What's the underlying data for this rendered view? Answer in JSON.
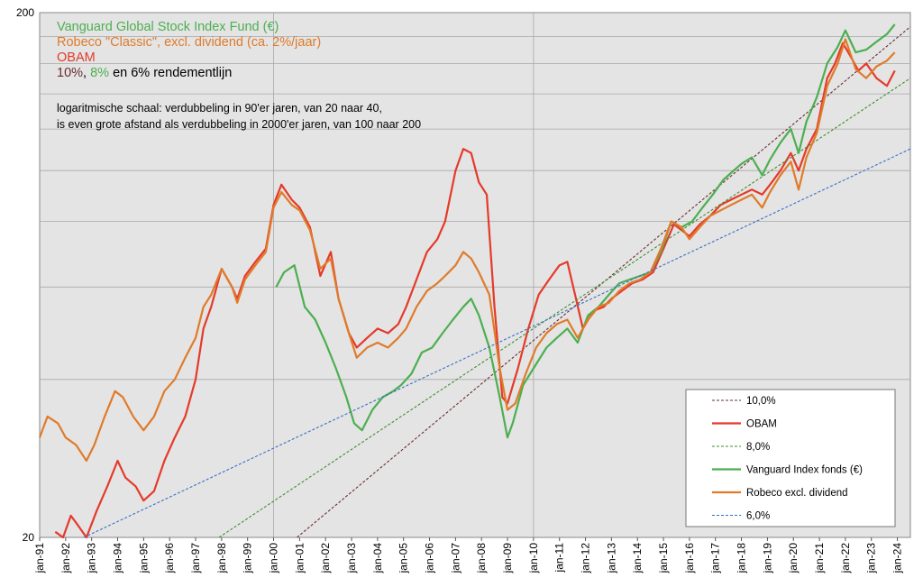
{
  "chart_data": {
    "type": "line",
    "yscale": "log",
    "ylim": [
      20,
      200
    ],
    "yticks": [
      "200",
      "20"
    ],
    "xlim": [
      1991.0,
      2024.5
    ],
    "xticks": [
      "jan-91",
      "jan-92",
      "jan-93",
      "jan-94",
      "jan-95",
      "jan-96",
      "jan-97",
      "jan-98",
      "jan-99",
      "jan-00",
      "jan-01",
      "jan-02",
      "jan-03",
      "jan-04",
      "jan-05",
      "jan-06",
      "jan-07",
      "jan-08",
      "jan-09",
      "jan-10",
      "jan-11",
      "jan-12",
      "jan-13",
      "jan-14",
      "jan-15",
      "jan-16",
      "jan-17",
      "jan-18",
      "jan-19",
      "jan-20",
      "jan-21",
      "jan-22",
      "jan-23",
      "jan-24"
    ],
    "grid": true,
    "title_lines": [
      {
        "text": "Vanguard Global Stock Index Fund (€)",
        "color": "#4caf50"
      },
      {
        "text": "Robeco \"Classic\", excl. dividend (ca. 2%/jaar)",
        "color": "#e07b2a"
      },
      {
        "text": "OBAM",
        "color": "#e53a2a"
      }
    ],
    "rendement_line": [
      {
        "text": "10%",
        "color": "#6b2d2d"
      },
      {
        "text": ", ",
        "color": "#000000"
      },
      {
        "text": "8%",
        "color": "#4caf50"
      },
      {
        "text": " en 6% rendementlijn",
        "color": "#000000"
      }
    ],
    "note": [
      "logaritmische schaal: verdubbeling in 90'er jaren, van 20 naar 40,",
      "is even grote afstand als verdubbeling in 2000'er jaren, van 100 naar 200"
    ],
    "legend_position": "bottom-right",
    "series": [
      {
        "name": "10,0%",
        "color": "#6b2d2d",
        "dashed": true,
        "points": [
          [
            2000.9,
            20
          ],
          [
            2024.5,
            188
          ]
        ]
      },
      {
        "name": "OBAM",
        "color": "#e53a2a",
        "dashed": false,
        "points": [
          [
            1991.6,
            20.5
          ],
          [
            1991.9,
            20
          ],
          [
            1992.2,
            22
          ],
          [
            1992.5,
            21
          ],
          [
            1992.8,
            20
          ],
          [
            1993.2,
            22.5
          ],
          [
            1993.6,
            25
          ],
          [
            1994.0,
            28
          ],
          [
            1994.3,
            26
          ],
          [
            1994.7,
            25
          ],
          [
            1995.0,
            23.5
          ],
          [
            1995.4,
            24.5
          ],
          [
            1995.8,
            28
          ],
          [
            1996.2,
            31
          ],
          [
            1996.6,
            34
          ],
          [
            1997.0,
            40
          ],
          [
            1997.3,
            50
          ],
          [
            1997.6,
            55
          ],
          [
            1998.0,
            65
          ],
          [
            1998.4,
            60
          ],
          [
            1998.6,
            57
          ],
          [
            1998.9,
            63
          ],
          [
            1999.3,
            67
          ],
          [
            1999.7,
            71
          ],
          [
            2000.0,
            86
          ],
          [
            2000.3,
            94
          ],
          [
            2000.7,
            88
          ],
          [
            2001.0,
            85
          ],
          [
            2001.4,
            78
          ],
          [
            2001.8,
            63
          ],
          [
            2002.2,
            70
          ],
          [
            2002.5,
            57
          ],
          [
            2002.9,
            49
          ],
          [
            2003.2,
            46
          ],
          [
            2003.6,
            48
          ],
          [
            2004.0,
            50
          ],
          [
            2004.4,
            49
          ],
          [
            2004.8,
            51
          ],
          [
            2005.1,
            55
          ],
          [
            2005.5,
            62
          ],
          [
            2005.9,
            70
          ],
          [
            2006.3,
            74
          ],
          [
            2006.6,
            80
          ],
          [
            2007.0,
            100
          ],
          [
            2007.3,
            110
          ],
          [
            2007.6,
            108
          ],
          [
            2007.9,
            95
          ],
          [
            2008.2,
            90
          ],
          [
            2008.5,
            55
          ],
          [
            2008.8,
            37
          ],
          [
            2009.0,
            36
          ],
          [
            2009.4,
            42
          ],
          [
            2009.8,
            50
          ],
          [
            2010.2,
            58
          ],
          [
            2010.6,
            62
          ],
          [
            2011.0,
            66
          ],
          [
            2011.3,
            67
          ],
          [
            2011.6,
            58
          ],
          [
            2011.9,
            50
          ],
          [
            2012.3,
            54
          ],
          [
            2012.7,
            55
          ],
          [
            2013.0,
            57
          ],
          [
            2013.4,
            59
          ],
          [
            2013.8,
            61
          ],
          [
            2014.2,
            62
          ],
          [
            2014.6,
            64
          ],
          [
            2015.0,
            71
          ],
          [
            2015.4,
            79
          ],
          [
            2015.7,
            77
          ],
          [
            2016.0,
            75
          ],
          [
            2016.4,
            79
          ],
          [
            2016.8,
            82
          ],
          [
            2017.2,
            86
          ],
          [
            2017.6,
            88
          ],
          [
            2018.0,
            90
          ],
          [
            2018.4,
            92
          ],
          [
            2018.8,
            90
          ],
          [
            2019.1,
            94
          ],
          [
            2019.5,
            100
          ],
          [
            2019.9,
            108
          ],
          [
            2020.2,
            100
          ],
          [
            2020.5,
            110
          ],
          [
            2020.9,
            120
          ],
          [
            2021.3,
            150
          ],
          [
            2021.6,
            160
          ],
          [
            2021.9,
            175
          ],
          [
            2022.2,
            165
          ],
          [
            2022.5,
            155
          ],
          [
            2022.8,
            160
          ],
          [
            2023.2,
            150
          ],
          [
            2023.6,
            145
          ],
          [
            2023.9,
            155
          ]
        ]
      },
      {
        "name": "8,0%",
        "color": "#3f8f2a",
        "dashed": true,
        "points": [
          [
            1997.9,
            20
          ],
          [
            2024.5,
            150
          ]
        ]
      },
      {
        "name": "Vanguard Index fonds (€)",
        "color": "#4caf50",
        "dashed": false,
        "points": [
          [
            2000.1,
            60
          ],
          [
            2000.4,
            64
          ],
          [
            2000.8,
            66
          ],
          [
            2001.2,
            55
          ],
          [
            2001.6,
            52
          ],
          [
            2002.0,
            47
          ],
          [
            2002.4,
            42
          ],
          [
            2002.8,
            37
          ],
          [
            2003.1,
            33
          ],
          [
            2003.4,
            32
          ],
          [
            2003.8,
            35
          ],
          [
            2004.2,
            37
          ],
          [
            2004.6,
            38
          ],
          [
            2004.9,
            39
          ],
          [
            2005.3,
            41
          ],
          [
            2005.7,
            45
          ],
          [
            2006.1,
            46
          ],
          [
            2006.5,
            49
          ],
          [
            2006.9,
            52
          ],
          [
            2007.3,
            55
          ],
          [
            2007.6,
            57
          ],
          [
            2007.9,
            53
          ],
          [
            2008.3,
            46
          ],
          [
            2008.7,
            37
          ],
          [
            2009.0,
            31
          ],
          [
            2009.2,
            33
          ],
          [
            2009.6,
            39
          ],
          [
            2010.0,
            42
          ],
          [
            2010.5,
            46
          ],
          [
            2010.9,
            48
          ],
          [
            2011.3,
            50
          ],
          [
            2011.7,
            47
          ],
          [
            2012.1,
            53
          ],
          [
            2012.5,
            55
          ],
          [
            2012.9,
            58
          ],
          [
            2013.3,
            61
          ],
          [
            2013.7,
            62
          ],
          [
            2014.1,
            63
          ],
          [
            2014.5,
            64
          ],
          [
            2014.9,
            70
          ],
          [
            2015.3,
            80
          ],
          [
            2015.7,
            78
          ],
          [
            2016.1,
            80
          ],
          [
            2016.5,
            85
          ],
          [
            2016.9,
            90
          ],
          [
            2017.3,
            96
          ],
          [
            2017.7,
            100
          ],
          [
            2018.0,
            103
          ],
          [
            2018.4,
            106
          ],
          [
            2018.8,
            98
          ],
          [
            2019.1,
            105
          ],
          [
            2019.5,
            113
          ],
          [
            2019.9,
            120
          ],
          [
            2020.2,
            108
          ],
          [
            2020.5,
            124
          ],
          [
            2020.9,
            138
          ],
          [
            2021.3,
            160
          ],
          [
            2021.7,
            172
          ],
          [
            2022.0,
            185
          ],
          [
            2022.4,
            168
          ],
          [
            2022.8,
            170
          ],
          [
            2023.2,
            176
          ],
          [
            2023.6,
            182
          ],
          [
            2023.9,
            190
          ]
        ]
      },
      {
        "name": "Robeco excl. dividend",
        "color": "#e07b2a",
        "dashed": false,
        "points": [
          [
            1991.0,
            31
          ],
          [
            1991.3,
            34
          ],
          [
            1991.7,
            33
          ],
          [
            1992.0,
            31
          ],
          [
            1992.4,
            30
          ],
          [
            1992.8,
            28
          ],
          [
            1993.1,
            30
          ],
          [
            1993.5,
            34
          ],
          [
            1993.9,
            38
          ],
          [
            1994.2,
            37
          ],
          [
            1994.6,
            34
          ],
          [
            1995.0,
            32
          ],
          [
            1995.4,
            34
          ],
          [
            1995.8,
            38
          ],
          [
            1996.2,
            40
          ],
          [
            1996.6,
            44
          ],
          [
            1997.0,
            48
          ],
          [
            1997.3,
            55
          ],
          [
            1997.6,
            58
          ],
          [
            1998.0,
            65
          ],
          [
            1998.4,
            60
          ],
          [
            1998.6,
            56
          ],
          [
            1998.9,
            62
          ],
          [
            1999.3,
            66
          ],
          [
            1999.7,
            70
          ],
          [
            2000.0,
            85
          ],
          [
            2000.3,
            91
          ],
          [
            2000.7,
            86
          ],
          [
            2001.0,
            84
          ],
          [
            2001.4,
            77
          ],
          [
            2001.8,
            65
          ],
          [
            2002.2,
            68
          ],
          [
            2002.5,
            57
          ],
          [
            2002.9,
            49
          ],
          [
            2003.2,
            44
          ],
          [
            2003.6,
            46
          ],
          [
            2004.0,
            47
          ],
          [
            2004.4,
            46
          ],
          [
            2004.8,
            48
          ],
          [
            2005.1,
            50
          ],
          [
            2005.5,
            55
          ],
          [
            2005.9,
            59
          ],
          [
            2006.3,
            61
          ],
          [
            2006.6,
            63
          ],
          [
            2007.0,
            66
          ],
          [
            2007.3,
            70
          ],
          [
            2007.6,
            68
          ],
          [
            2007.9,
            64
          ],
          [
            2008.3,
            58
          ],
          [
            2008.7,
            42
          ],
          [
            2009.0,
            35
          ],
          [
            2009.3,
            36
          ],
          [
            2009.7,
            41
          ],
          [
            2010.1,
            46
          ],
          [
            2010.5,
            49
          ],
          [
            2010.9,
            51
          ],
          [
            2011.3,
            52
          ],
          [
            2011.7,
            48
          ],
          [
            2012.1,
            52
          ],
          [
            2012.5,
            55
          ],
          [
            2012.9,
            56
          ],
          [
            2013.3,
            59
          ],
          [
            2013.7,
            61
          ],
          [
            2014.1,
            62
          ],
          [
            2014.5,
            64
          ],
          [
            2014.9,
            71
          ],
          [
            2015.3,
            80
          ],
          [
            2015.7,
            78
          ],
          [
            2016.0,
            74
          ],
          [
            2016.4,
            78
          ],
          [
            2016.8,
            82
          ],
          [
            2017.2,
            84
          ],
          [
            2017.6,
            86
          ],
          [
            2018.0,
            88
          ],
          [
            2018.4,
            90
          ],
          [
            2018.8,
            85
          ],
          [
            2019.1,
            91
          ],
          [
            2019.5,
            98
          ],
          [
            2019.9,
            104
          ],
          [
            2020.2,
            92
          ],
          [
            2020.5,
            106
          ],
          [
            2020.9,
            118
          ],
          [
            2021.3,
            145
          ],
          [
            2021.7,
            160
          ],
          [
            2022.0,
            178
          ],
          [
            2022.4,
            156
          ],
          [
            2022.8,
            150
          ],
          [
            2023.2,
            158
          ],
          [
            2023.6,
            162
          ],
          [
            2023.9,
            168
          ]
        ]
      },
      {
        "name": "6,0%",
        "color": "#3a6fc4",
        "dashed": true,
        "points": [
          [
            1992.7,
            20
          ],
          [
            2024.5,
            110
          ]
        ]
      }
    ]
  }
}
